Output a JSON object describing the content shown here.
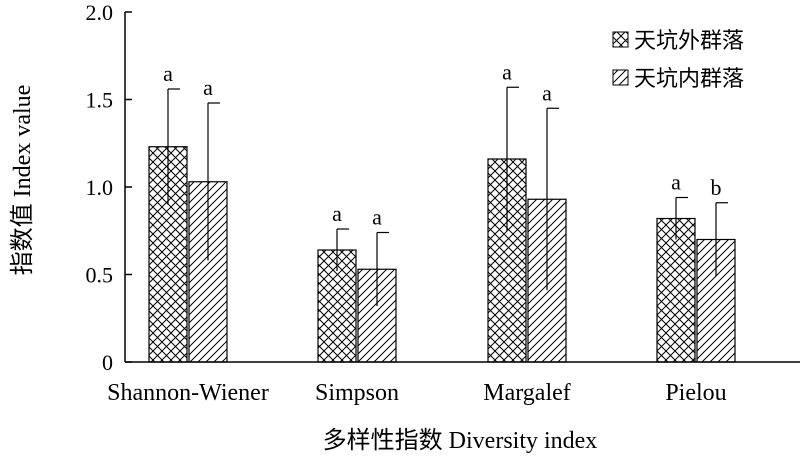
{
  "chart_data": {
    "type": "bar",
    "xlabel": "多样性指数 Diversity index",
    "ylabel": "指数值 Index value",
    "ylim": [
      0,
      2.0
    ],
    "yticks": [
      "0",
      "0.5",
      "1.0",
      "1.5",
      "2.0"
    ],
    "ytick_values": [
      0,
      0.5,
      1.0,
      1.5,
      2.0
    ],
    "categories": [
      "Shannon-Wiener",
      "Simpson",
      "Margalef",
      "Pielou"
    ],
    "legend_position": "top-right",
    "grid": false,
    "series": [
      {
        "name": "天坑外群落",
        "pattern": "crosshatch",
        "values": [
          1.23,
          0.64,
          1.16,
          0.82
        ],
        "error": [
          0.33,
          0.12,
          0.41,
          0.12
        ],
        "significance": [
          "a",
          "a",
          "a",
          "a"
        ]
      },
      {
        "name": "天坑内群落",
        "pattern": "diagonal",
        "values": [
          1.03,
          0.53,
          0.93,
          0.7
        ],
        "error": [
          0.45,
          0.21,
          0.52,
          0.21
        ],
        "significance": [
          "a",
          "a",
          "a",
          "b"
        ]
      }
    ]
  }
}
